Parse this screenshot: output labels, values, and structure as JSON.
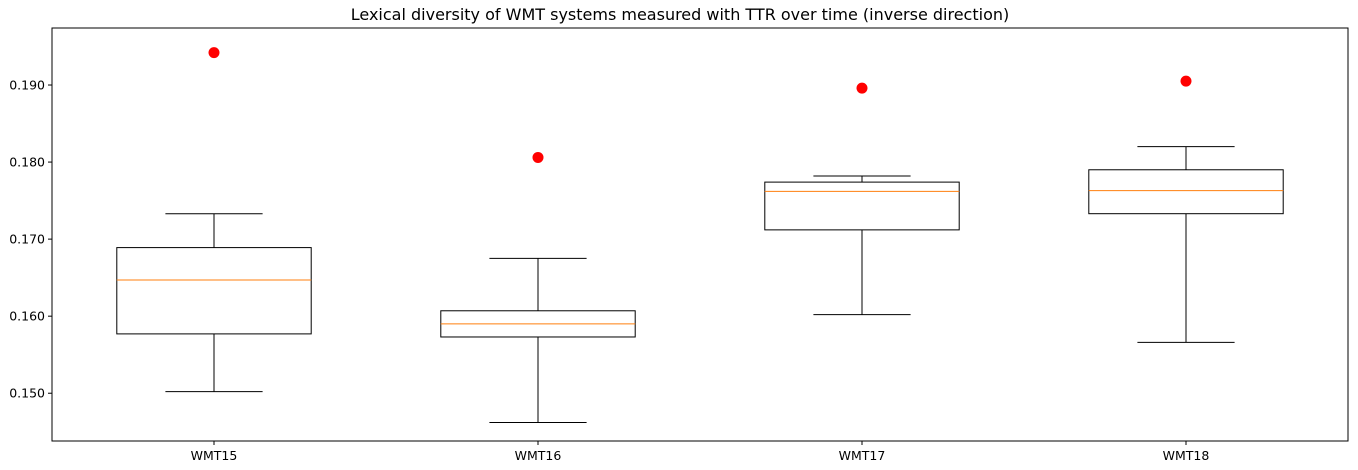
{
  "chart_data": {
    "type": "box",
    "title": "Lexical diversity of WMT systems measured with TTR over time (inverse direction)",
    "xlabel": "",
    "ylabel": "",
    "categories": [
      "WMT15",
      "WMT16",
      "WMT17",
      "WMT18"
    ],
    "ylim": [
      0.1438,
      0.1974
    ],
    "yticks": [
      0.15,
      0.16,
      0.17,
      0.18,
      0.19
    ],
    "ytick_labels": [
      "0.150",
      "0.160",
      "0.170",
      "0.180",
      "0.190"
    ],
    "boxes": [
      {
        "whisker_low": 0.1502,
        "q1": 0.1577,
        "median": 0.1647,
        "q3": 0.1689,
        "whisker_high": 0.1733
      },
      {
        "whisker_low": 0.1462,
        "q1": 0.1573,
        "median": 0.159,
        "q3": 0.1607,
        "whisker_high": 0.1675
      },
      {
        "whisker_low": 0.1602,
        "q1": 0.1712,
        "median": 0.1762,
        "q3": 0.1774,
        "whisker_high": 0.1782
      },
      {
        "whisker_low": 0.1566,
        "q1": 0.1733,
        "median": 0.1763,
        "q3": 0.179,
        "whisker_high": 0.182
      }
    ],
    "highlight_points": [
      0.1942,
      0.1806,
      0.1896,
      0.1905
    ],
    "grid": false,
    "legend": false,
    "colors": {
      "box": "#000000",
      "median": "#ff7f0e",
      "highlight": "#ff0000"
    }
  }
}
